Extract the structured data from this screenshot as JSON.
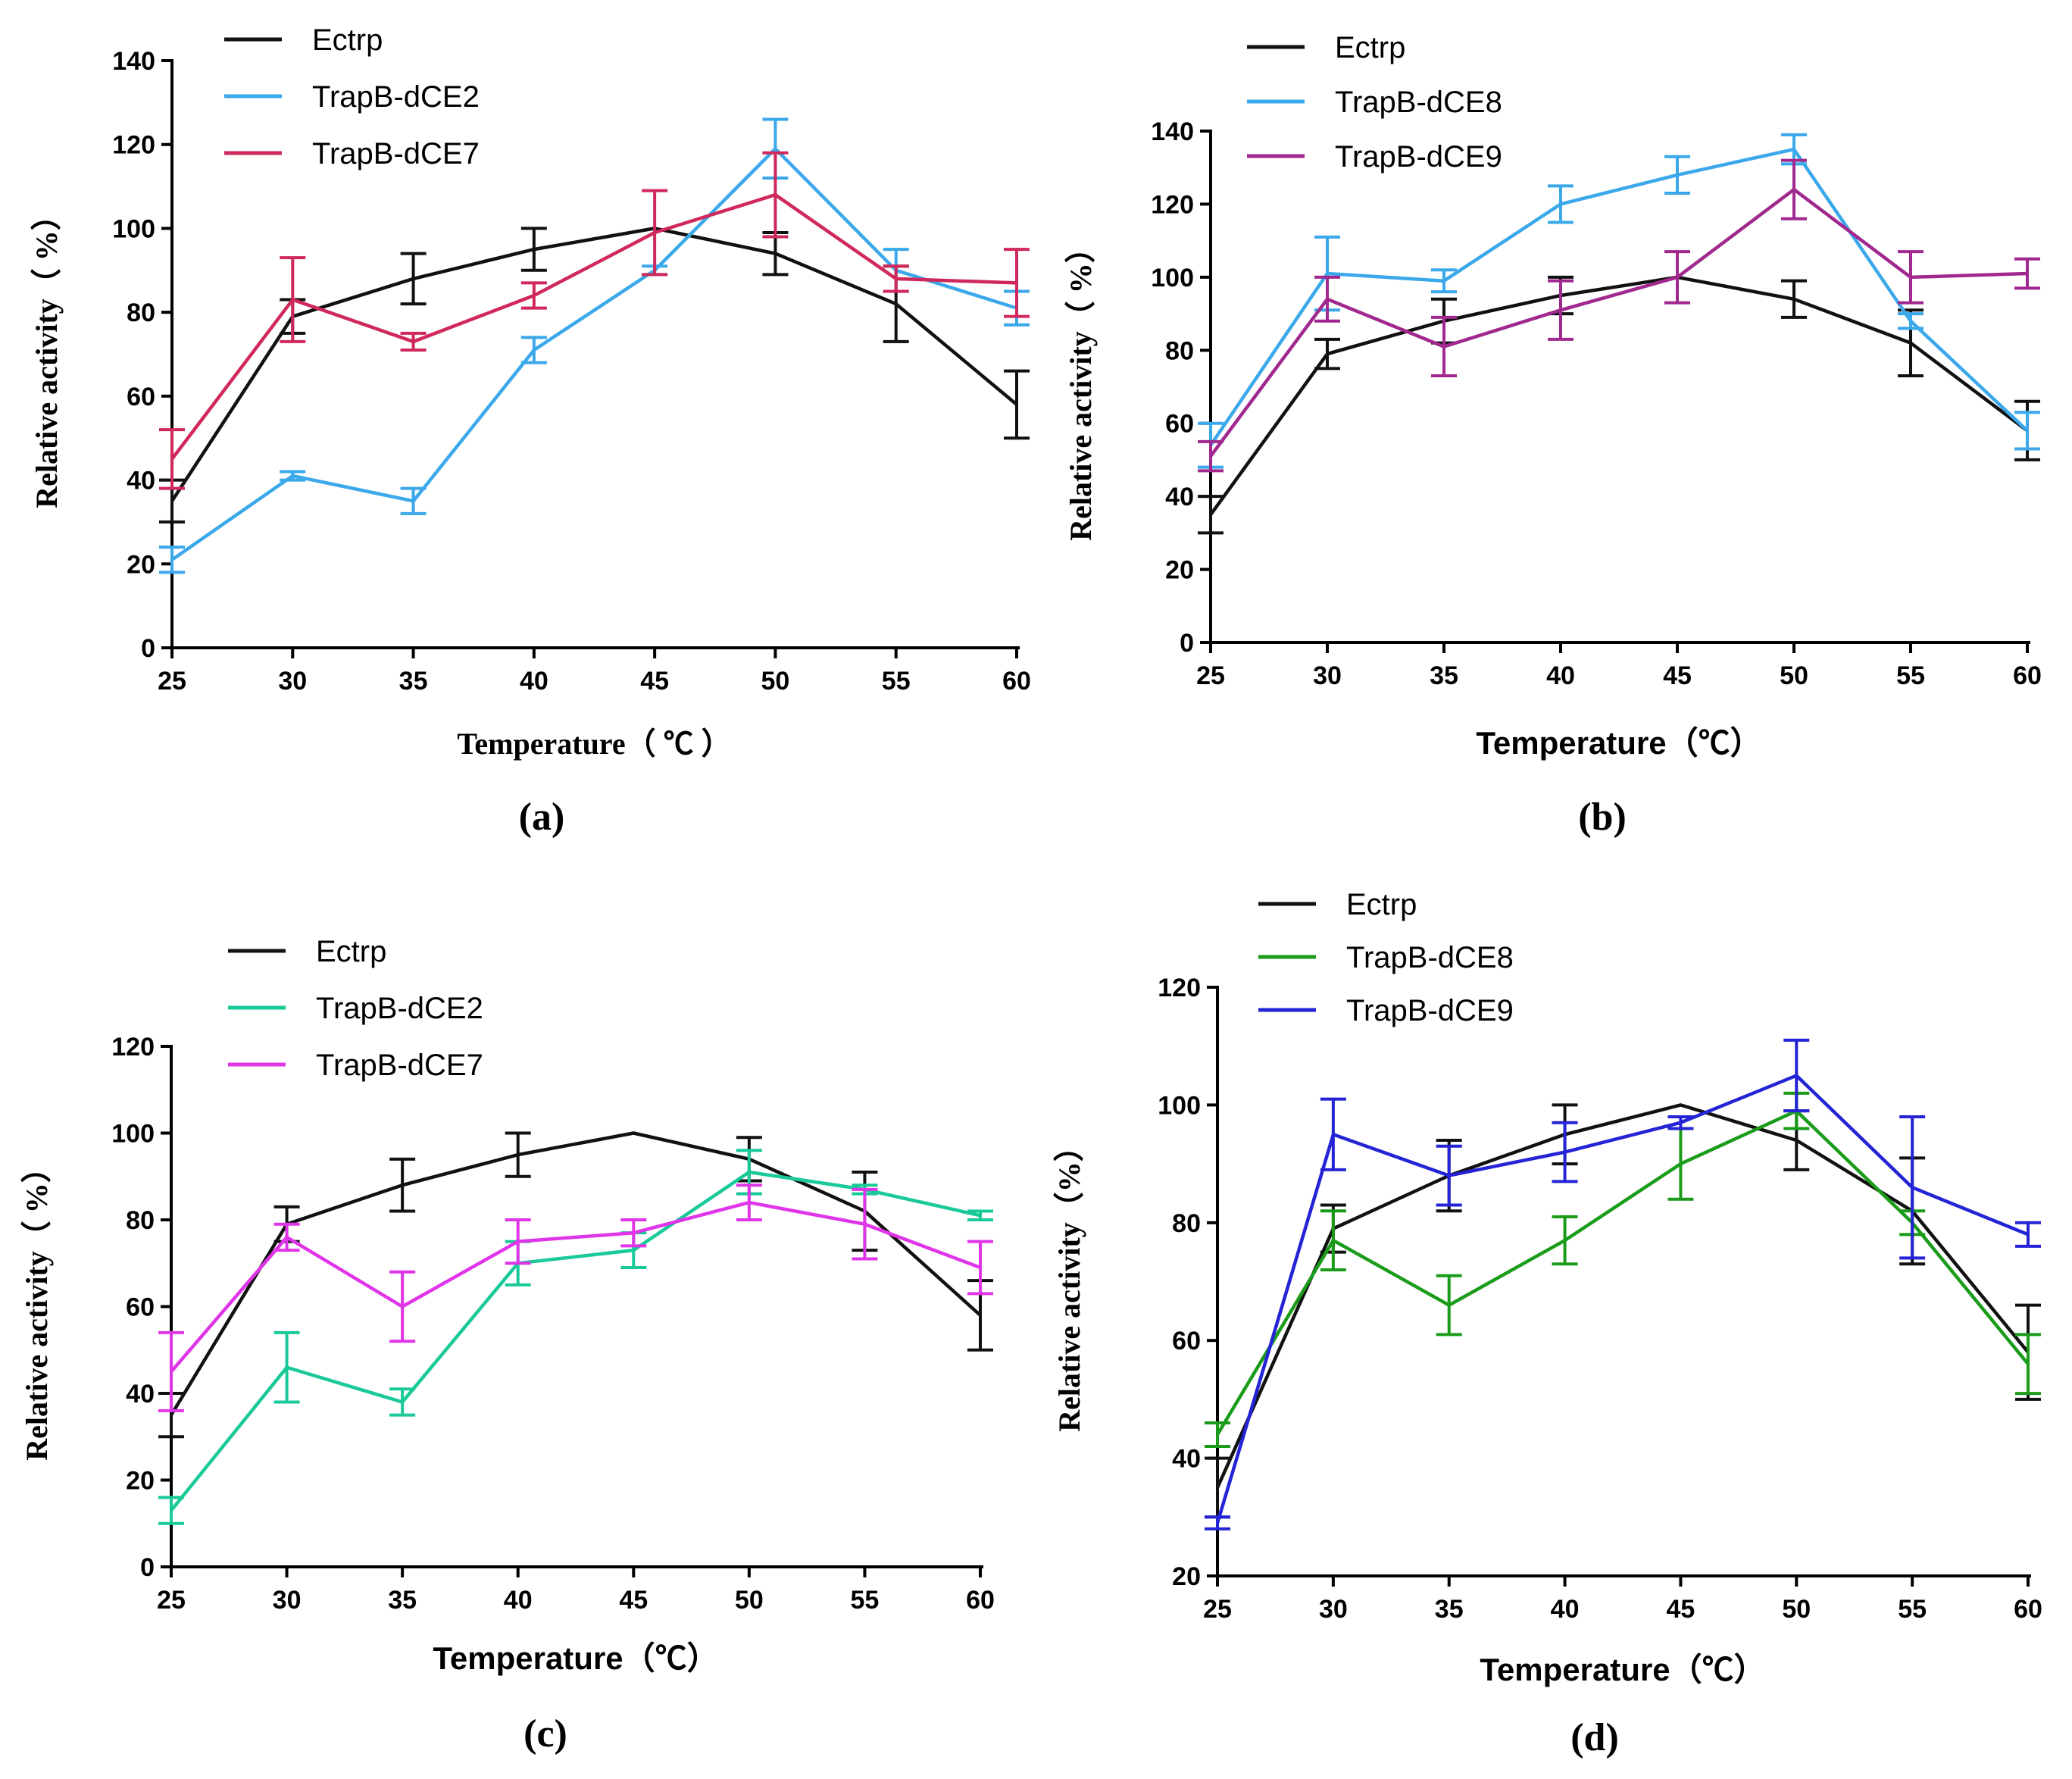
{
  "chart_data": [
    {
      "panel": "(a)",
      "type": "line",
      "xlabel": "Temperature（ ℃ ）",
      "ylabel": "Relative activity（ %）",
      "x": [
        25,
        30,
        35,
        40,
        45,
        50,
        55,
        60
      ],
      "xlim": [
        25,
        60
      ],
      "ylim": [
        0,
        140
      ],
      "yticks": [
        0,
        20,
        40,
        60,
        80,
        100,
        120,
        140
      ],
      "legend_position": "top-left",
      "series": [
        {
          "name": "Ectrp",
          "color": "#111111",
          "values": [
            35,
            79,
            88,
            95,
            100,
            94,
            82,
            58
          ],
          "errors": [
            5,
            4,
            6,
            5,
            0,
            5,
            9,
            8
          ]
        },
        {
          "name": "TrapB-dCE2",
          "color": "#3aa8ea",
          "values": [
            21,
            41,
            35,
            71,
            90,
            119,
            90,
            81
          ],
          "errors": [
            3,
            1,
            3,
            3,
            1,
            7,
            5,
            4
          ]
        },
        {
          "name": "TrapB-dCE7",
          "color": "#d0285a",
          "values": [
            45,
            83,
            73,
            84,
            99,
            108,
            88,
            87
          ],
          "errors": [
            7,
            10,
            2,
            3,
            10,
            10,
            3,
            8
          ]
        }
      ]
    },
    {
      "panel": "(b)",
      "type": "line",
      "xlabel": "Temperature（℃）",
      "ylabel": "Relative activity（ %）",
      "x": [
        25,
        30,
        35,
        40,
        45,
        50,
        55,
        60
      ],
      "xlim": [
        25,
        60
      ],
      "ylim": [
        0,
        140
      ],
      "yticks": [
        0,
        20,
        40,
        60,
        80,
        100,
        120,
        140
      ],
      "legend_position": "top-left",
      "series": [
        {
          "name": "Ectrp",
          "color": "#111111",
          "values": [
            35,
            79,
            88,
            95,
            100,
            94,
            82,
            58
          ],
          "errors": [
            5,
            4,
            6,
            5,
            0,
            5,
            9,
            8
          ]
        },
        {
          "name": "TrapB-dCE8",
          "color": "#3aa8ea",
          "values": [
            54,
            101,
            99,
            120,
            128,
            135,
            88,
            58
          ],
          "errors": [
            6,
            10,
            3,
            5,
            5,
            4,
            2,
            5
          ]
        },
        {
          "name": "TrapB-dCE9",
          "color": "#a0288f",
          "values": [
            51,
            94,
            81,
            91,
            100,
            124,
            100,
            101
          ],
          "errors": [
            4,
            6,
            8,
            8,
            7,
            8,
            7,
            4
          ]
        }
      ]
    },
    {
      "panel": "(c)",
      "type": "line",
      "xlabel": "Temperature（℃）",
      "ylabel": "Relative activity（ %）",
      "x": [
        25,
        30,
        35,
        40,
        45,
        50,
        55,
        60
      ],
      "xlim": [
        25,
        60
      ],
      "ylim": [
        0,
        120
      ],
      "yticks": [
        0,
        20,
        40,
        60,
        80,
        100,
        120
      ],
      "legend_position": "top-left",
      "series": [
        {
          "name": "Ectrp",
          "color": "#111111",
          "values": [
            35,
            79,
            88,
            95,
            100,
            94,
            82,
            58
          ],
          "errors": [
            5,
            4,
            6,
            5,
            0,
            5,
            9,
            8
          ]
        },
        {
          "name": "TrapB-dCE2",
          "color": "#19c998",
          "values": [
            13,
            46,
            38,
            70,
            73,
            91,
            87,
            81
          ],
          "errors": [
            3,
            8,
            3,
            5,
            4,
            5,
            1,
            1
          ]
        },
        {
          "name": "TrapB-dCE7",
          "color": "#e034e8",
          "values": [
            45,
            76,
            60,
            75,
            77,
            84,
            79,
            69
          ],
          "errors": [
            9,
            3,
            8,
            5,
            3,
            4,
            8,
            6
          ]
        }
      ]
    },
    {
      "panel": "(d)",
      "type": "line",
      "xlabel": "Temperature（℃）",
      "ylabel": "Relative activity（%）",
      "x": [
        25,
        30,
        35,
        40,
        45,
        50,
        55,
        60
      ],
      "xlim": [
        25,
        60
      ],
      "ylim": [
        20,
        120
      ],
      "yticks": [
        20,
        40,
        60,
        80,
        100,
        120
      ],
      "legend_position": "top-left",
      "series": [
        {
          "name": "Ectrp",
          "color": "#111111",
          "values": [
            35,
            79,
            88,
            95,
            100,
            94,
            82,
            58
          ],
          "errors": [
            5,
            4,
            6,
            5,
            0,
            5,
            9,
            8
          ]
        },
        {
          "name": "TrapB-dCE8",
          "color": "#1a9c1a",
          "values": [
            44,
            77,
            66,
            77,
            90,
            99,
            80,
            56
          ],
          "errors": [
            2,
            5,
            5,
            4,
            6,
            3,
            2,
            5
          ]
        },
        {
          "name": "TrapB-dCE9",
          "color": "#2424d6",
          "values": [
            29,
            95,
            88,
            92,
            97,
            105,
            86,
            78
          ],
          "errors": [
            1,
            6,
            5,
            5,
            1,
            6,
            12,
            2
          ]
        }
      ]
    }
  ]
}
